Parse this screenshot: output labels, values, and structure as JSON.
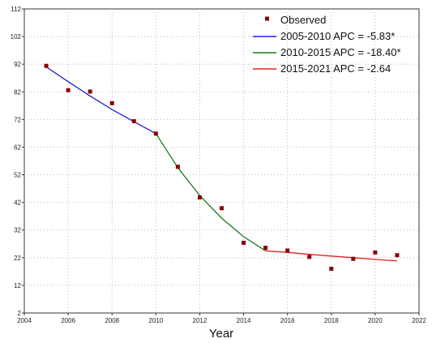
{
  "chart_data": {
    "type": "line",
    "title": "",
    "xlabel": "Year",
    "ylabel": "",
    "xlim": [
      2004,
      2022
    ],
    "ylim": [
      2,
      112
    ],
    "x_ticks": [
      2004,
      2006,
      2008,
      2010,
      2012,
      2014,
      2016,
      2018,
      2020,
      2022
    ],
    "y_ticks": [
      2,
      12,
      22,
      32,
      42,
      52,
      62,
      72,
      82,
      92,
      102,
      112
    ],
    "grid": true,
    "legend_position": "top-right",
    "observed": {
      "name": "Observed",
      "color": "#8b0000",
      "x": [
        2005,
        2006,
        2007,
        2008,
        2009,
        2010,
        2011,
        2012,
        2013,
        2014,
        2015,
        2016,
        2017,
        2018,
        2019,
        2020,
        2021
      ],
      "y": [
        91.4,
        82.6,
        82.1,
        77.9,
        71.4,
        66.9,
        54.9,
        43.8,
        39.9,
        27.4,
        25.6,
        24.6,
        22.3,
        18.0,
        21.6,
        23.9,
        22.9
      ]
    },
    "series": [
      {
        "name": "2005-2010 APC =  -5.83*",
        "color": "#1f1fdb",
        "x": [
          2005,
          2006,
          2007,
          2008,
          2009,
          2010
        ],
        "y": [
          91.0,
          85.7,
          80.5,
          75.6,
          71.2,
          66.9
        ]
      },
      {
        "name": "2010-2015 APC = -18.40*",
        "color": "#1a7a1a",
        "x": [
          2010,
          2011,
          2012,
          2013,
          2014,
          2015
        ],
        "y": [
          66.9,
          54.6,
          44.5,
          36.3,
          29.6,
          24.5
        ]
      },
      {
        "name": "2015-2021 APC =  -2.64",
        "color": "#e02020",
        "x": [
          2015,
          2016,
          2017,
          2018,
          2019,
          2020,
          2021
        ],
        "y": [
          24.5,
          23.9,
          23.2,
          22.6,
          22.0,
          21.4,
          20.8
        ]
      }
    ]
  }
}
